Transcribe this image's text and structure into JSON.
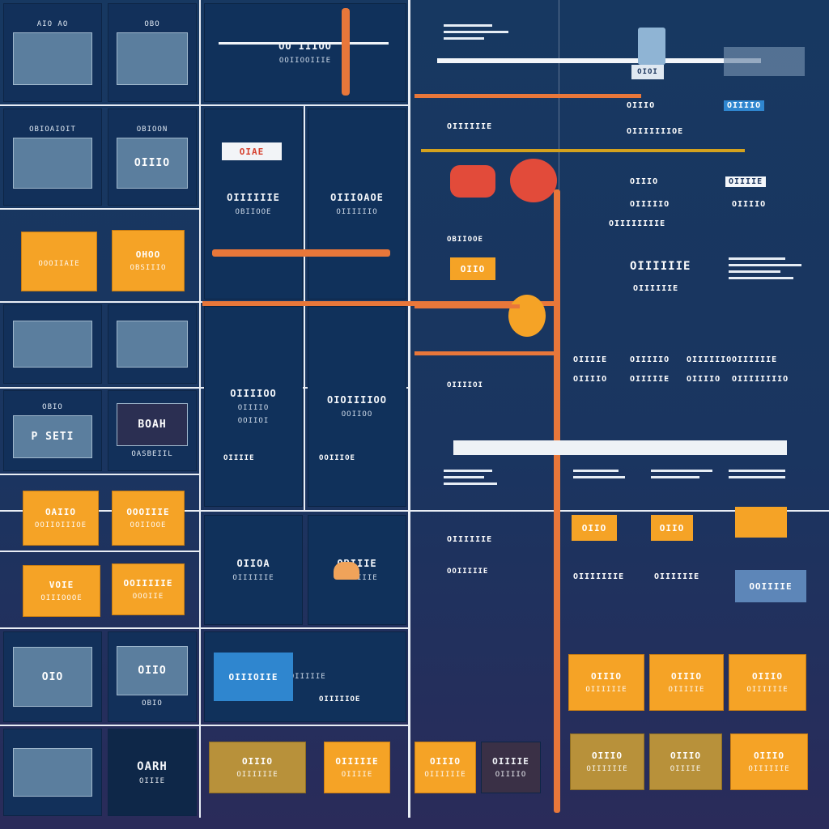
{
  "colors": {
    "background": "#173861",
    "tile": "#12305a",
    "accent_orange": "#f5a326",
    "accent_red": "#e24b3a",
    "accent_blue": "#2f86cf",
    "olive": "#b8913a",
    "grid": "#e9eef5"
  },
  "left_tiles": [
    {
      "id": "tile-r1c1",
      "screen": "",
      "caption": "AIO AO"
    },
    {
      "id": "tile-r1c2",
      "screen": "",
      "caption": "OBO"
    },
    {
      "id": "tile-r2c1",
      "screen": "",
      "caption": "OBIOAIOIT"
    },
    {
      "id": "tile-r2c2",
      "screen": "OIIIO",
      "caption": "OBIOON"
    },
    {
      "id": "tile-r3c1",
      "title": "",
      "subtitle": "OOOIIAIE"
    },
    {
      "id": "tile-r3c2",
      "title": "OHOO",
      "subtitle": "OBSIIIO"
    },
    {
      "id": "tile-r4c1",
      "screen": "",
      "caption": ""
    },
    {
      "id": "tile-r4c2",
      "screen": "",
      "caption": ""
    },
    {
      "id": "tile-r5c1",
      "screen": "P SETI",
      "caption": "OBIO"
    },
    {
      "id": "tile-r5c2",
      "screen": "BOAH",
      "caption": "OASBEIIL"
    },
    {
      "id": "tile-r6c1",
      "title": "OAIIO",
      "subtitle": "OOIIOIIIOE"
    },
    {
      "id": "tile-r6c2",
      "title": "OOOIIIE",
      "subtitle": "OOIIOOE"
    },
    {
      "id": "tile-r7c1",
      "title": "VOIE",
      "subtitle": "OIIIOOOE"
    },
    {
      "id": "tile-r7c2",
      "title": "OOIIIIIE",
      "subtitle": "OOOIIE"
    },
    {
      "id": "tile-r8c1",
      "screen": "OIO",
      "caption": ""
    },
    {
      "id": "tile-r8c2",
      "screen": "OIIO",
      "caption": "OBIO"
    },
    {
      "id": "tile-r9c1",
      "screen": "",
      "caption": ""
    },
    {
      "id": "tile-r9c2",
      "title": "OARH",
      "subtitle": "OIIIE"
    }
  ],
  "mid_panels": {
    "p1": {
      "title": "OO IIIOO",
      "subtitle": "OOIIOOIIIE"
    },
    "p2": {
      "title": "OIIIIIIE",
      "subtitle": "OBIIOOE"
    },
    "p3": {
      "title": "OIIIOAOE",
      "subtitle": "OIAE"
    },
    "p4": {
      "title": "OIIIIOO",
      "subtitle": "OIIIIIIO"
    },
    "p5": {
      "title": "OIOIIIIOO",
      "subtitle": "OIIIIO"
    },
    "p6": {
      "title": "OIIOA",
      "subtitle": "OOIIOI"
    },
    "p7": {
      "title": "OBIIIE",
      "subtitle": "OOIIOO"
    },
    "p8": {
      "title": "OIIIIE",
      "subtitle": "OIIIIIIE"
    },
    "p9": {
      "title": "OOIIIOE",
      "subtitle": "OIIIIIIE"
    },
    "p10": {
      "title": "OIIIIIOE",
      "subtitle": "OOIIIIIE"
    },
    "p11": {
      "title": "OOIIIIE",
      "subtitle": "OOIIIIIE"
    },
    "p12": {
      "title": "",
      "subtitle": ""
    },
    "bottom1": {
      "title": "OIIIO",
      "subtitle": "OIIIIIIE"
    },
    "bottom2": {
      "title": "OIIIIIE",
      "subtitle": "OIIIIE"
    },
    "blue_button": "OIIIOIIE"
  },
  "right_area": {
    "header_rows": [
      "OIIIIIIE",
      "OIIIIIIIOE",
      "OIIIIIIIIE"
    ],
    "badge_oio": "OIOI",
    "row_labels": [
      "OIIIO",
      "OIIIIE",
      "OIIIIO"
    ],
    "top_right_labels": [
      "OIIIO",
      "OIIIIO",
      "OIIIIOI"
    ],
    "mid_labels": [
      "OIIIIIO",
      "OIIIIIIE",
      "OIIIIIIE"
    ],
    "grid_labels": [
      [
        "OIIIIE",
        "OIIIIIO",
        "OIIIIIIO",
        "OIIIIIIE"
      ],
      [
        "OIIIIO",
        "OIIIIIE",
        "OIIIIO",
        "OIIIIIIIIO"
      ]
    ],
    "small_orange": [
      "OIIO",
      "OIIO",
      "OIIO"
    ],
    "bottom_orange": [
      {
        "title": "OIIIO",
        "subtitle": "OIIIIIIE"
      },
      {
        "title": "OIIIO",
        "subtitle": "OIIIIIE"
      },
      {
        "title": "OIIIO",
        "subtitle": "OIIIIIIE"
      },
      {
        "title": "OIIIO",
        "subtitle": "OIIIIIIE"
      },
      {
        "title": "OIIIO",
        "subtitle": "OIIIIE"
      },
      {
        "title": "OIIIO",
        "subtitle": "OIIIIIIE"
      }
    ],
    "last_row_left": [
      {
        "title": "OIIIO",
        "subtitle": "OIIIIIIE"
      },
      {
        "title": "OIIIIE",
        "subtitle": "OIIIIO"
      }
    ],
    "right_list": [
      "OIIIIIIE",
      "OIIIIIIIE",
      "OIIIIIIE"
    ]
  }
}
